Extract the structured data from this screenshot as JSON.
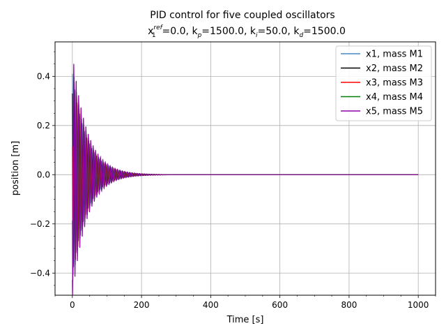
{
  "chart_data": {
    "type": "line",
    "title": "PID control for five coupled oscillators",
    "subtitle": {
      "x_sym": "x",
      "x_sub": "1",
      "x_sup": "ref",
      "x_val": "=0.0, ",
      "kp_sym": "k",
      "kp_sub": "p",
      "kp_val": "=1500.0, ",
      "ki_sym": "k",
      "ki_sub": "i",
      "ki_val": "=50.0, ",
      "kd_sym": "k",
      "kd_sub": "d",
      "kd_val": "=1500.0"
    },
    "xlabel": "Time [s]",
    "ylabel": "position [m]",
    "xlim": [
      -50,
      1050
    ],
    "ylim": [
      -0.49,
      0.54
    ],
    "xticks": [
      0,
      200,
      400,
      600,
      800,
      1000
    ],
    "xtick_labels": [
      "0",
      "200",
      "400",
      "600",
      "800",
      "1000"
    ],
    "yticks": [
      -0.4,
      -0.2,
      0.0,
      0.2,
      0.4
    ],
    "ytick_labels": [
      "−0.4",
      "−0.2",
      "0.0",
      "0.2",
      "0.4"
    ],
    "grid": true,
    "legend_position": "top-right",
    "series": [
      {
        "name": "x1, mass M1",
        "color": "#4a86c8",
        "amplitude": 0.41,
        "period": 7.0,
        "decay_tau": 42,
        "phase": 0.0,
        "t_end": 1000
      },
      {
        "name": "x2, mass M2",
        "color": "#000000",
        "amplitude": 0.4,
        "period": 7.0,
        "decay_tau": 42,
        "phase": 0.6,
        "t_end": 1000
      },
      {
        "name": "x3, mass M3",
        "color": "#ff0000",
        "amplitude": 0.43,
        "period": 7.0,
        "decay_tau": 42,
        "phase": 1.3,
        "t_end": 1000
      },
      {
        "name": "x4, mass M4",
        "color": "#008000",
        "amplitude": 0.45,
        "period": 7.0,
        "decay_tau": 42,
        "phase": 2.0,
        "t_end": 1000
      },
      {
        "name": "x5, mass M5",
        "color": "#8b00a8",
        "amplitude": 0.5,
        "period": 7.0,
        "decay_tau": 42,
        "phase": 2.6,
        "t_end": 1000
      }
    ]
  }
}
